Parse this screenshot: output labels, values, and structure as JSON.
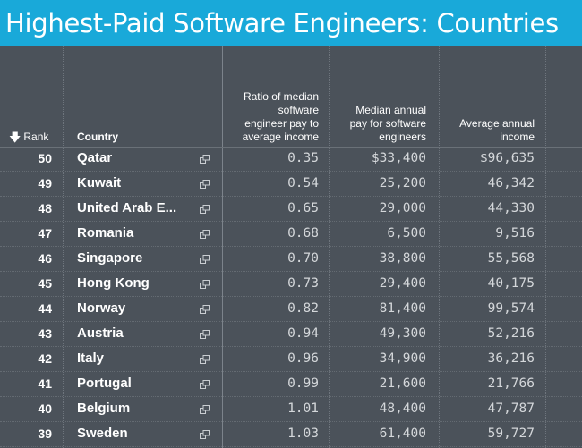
{
  "title": "Highest-Paid Software Engineers: Countries",
  "headers": {
    "rank": "Rank",
    "rank_sort_icon": "arrow-down-icon",
    "country": "Country",
    "ratio": "Ratio of median software engineer pay to average income",
    "median": "Median annual pay for software engineers",
    "average": "Average annual income"
  },
  "rows": [
    {
      "rank": "50",
      "country": "Qatar",
      "ratio": "0.35",
      "median": "$33,400",
      "average": "$96,635"
    },
    {
      "rank": "49",
      "country": "Kuwait",
      "ratio": "0.54",
      "median": "25,200",
      "average": "46,342"
    },
    {
      "rank": "48",
      "country": "United Arab E...",
      "ratio": "0.65",
      "median": "29,000",
      "average": "44,330"
    },
    {
      "rank": "47",
      "country": "Romania",
      "ratio": "0.68",
      "median": "6,500",
      "average": "9,516"
    },
    {
      "rank": "46",
      "country": "Singapore",
      "ratio": "0.70",
      "median": "38,800",
      "average": "55,568"
    },
    {
      "rank": "45",
      "country": "Hong Kong",
      "ratio": "0.73",
      "median": "29,400",
      "average": "40,175"
    },
    {
      "rank": "44",
      "country": "Norway",
      "ratio": "0.82",
      "median": "81,400",
      "average": "99,574"
    },
    {
      "rank": "43",
      "country": "Austria",
      "ratio": "0.94",
      "median": "49,300",
      "average": "52,216"
    },
    {
      "rank": "42",
      "country": "Italy",
      "ratio": "0.96",
      "median": "34,900",
      "average": "36,216"
    },
    {
      "rank": "41",
      "country": "Portugal",
      "ratio": "0.99",
      "median": "21,600",
      "average": "21,766"
    },
    {
      "rank": "40",
      "country": "Belgium",
      "ratio": "1.01",
      "median": "48,400",
      "average": "47,787"
    },
    {
      "rank": "39",
      "country": "Sweden",
      "ratio": "1.03",
      "median": "61,400",
      "average": "59,727"
    }
  ],
  "row_action_icon": "popout-icon",
  "colors": {
    "title_bar": "#19a9d9",
    "background": "#4b525a",
    "text": "#ffffff",
    "number_text": "#d4d7da"
  }
}
